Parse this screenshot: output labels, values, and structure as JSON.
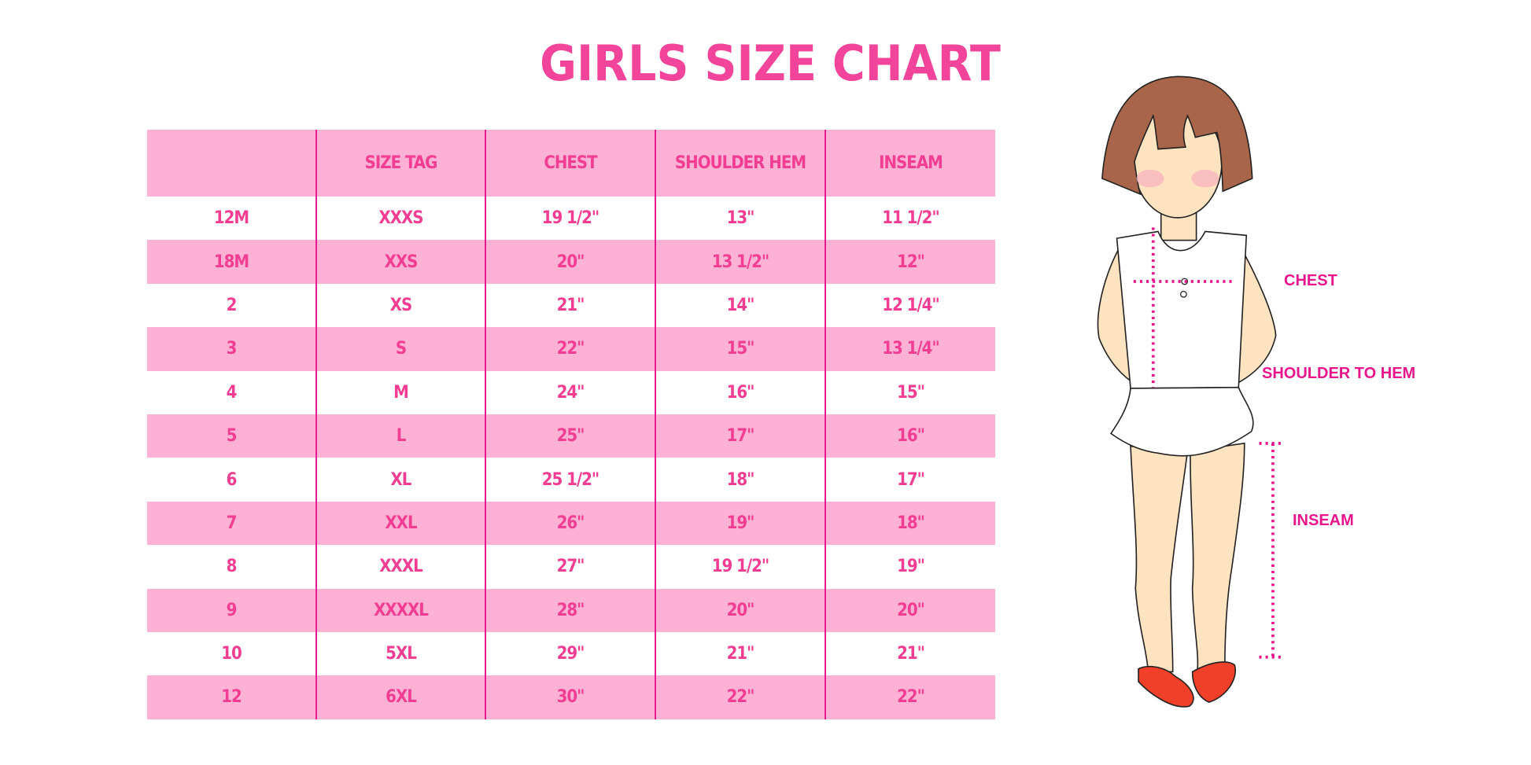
{
  "title": "GIRLS SIZE CHART",
  "table": {
    "headers": [
      "",
      "SIZE TAG",
      "CHEST",
      "SHOULDER HEM",
      "INSEAM"
    ],
    "rows": [
      [
        "12M",
        "XXXS",
        "19 1/2\"",
        "13\"",
        "11 1/2\""
      ],
      [
        "18M",
        "XXS",
        "20\"",
        "13 1/2\"",
        "12\""
      ],
      [
        "2",
        "XS",
        "21\"",
        "14\"",
        "12 1/4\""
      ],
      [
        "3",
        "S",
        "22\"",
        "15\"",
        "13 1/4\""
      ],
      [
        "4",
        "M",
        "24\"",
        "16\"",
        "15\""
      ],
      [
        "5",
        "L",
        "25\"",
        "17\"",
        "16\""
      ],
      [
        "6",
        "XL",
        "25 1/2\"",
        "18\"",
        "17\""
      ],
      [
        "7",
        "XXL",
        "26\"",
        "19\"",
        "18\""
      ],
      [
        "8",
        "XXXL",
        "27\"",
        "19 1/2\"",
        "19\""
      ],
      [
        "9",
        "XXXXL",
        "28\"",
        "20\"",
        "20\""
      ],
      [
        "10",
        "5XL",
        "29\"",
        "21\"",
        "21\""
      ],
      [
        "12",
        "6XL",
        "30\"",
        "22\"",
        "22\""
      ]
    ]
  },
  "figure": {
    "labels": {
      "chest": "CHEST",
      "shoulder": "SHOULDER TO HEM",
      "inseam": "INSEAM"
    }
  },
  "colors": {
    "accent": "#f23d93",
    "row_fill": "#fcb1d5",
    "divider": "#e8188e",
    "hair": "#a8654a",
    "skin": "#fde3c0",
    "shoes": "#f0402a"
  }
}
